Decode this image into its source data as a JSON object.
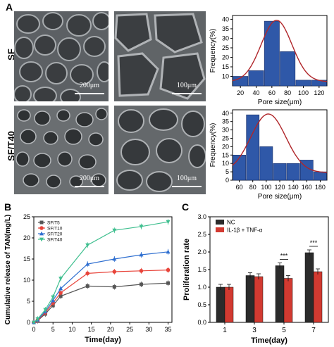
{
  "panel_labels": {
    "a": "A",
    "b": "B",
    "c": "C"
  },
  "sem": {
    "rows": [
      {
        "label": "SF",
        "scales": [
          "200μm",
          "100μm"
        ]
      },
      {
        "label": "SF/T40",
        "scales": [
          "200μm",
          "100μm"
        ]
      }
    ]
  },
  "chart_data": [
    {
      "type": "bar",
      "id": "hist-sf",
      "categories": [
        "20-40",
        "40-60",
        "60-80",
        "80-100",
        "100-120",
        "120-140"
      ],
      "values": [
        10,
        13,
        39,
        23,
        8,
        8
      ],
      "fit": "gaussian",
      "xlabel": "Pore size(μm)",
      "ylabel": "Frequency(%)",
      "xticks": [
        "20",
        "40",
        "60",
        "80",
        "100",
        "120"
      ],
      "yticks": [
        "10",
        "15",
        "20",
        "25",
        "30",
        "35",
        "40"
      ],
      "ylim": [
        5,
        42
      ],
      "bar_color": "#2f58a8",
      "fit_color": "#b0262a"
    },
    {
      "type": "bar",
      "id": "hist-sft40",
      "categories": [
        "60-80",
        "80-100",
        "100-120",
        "120-140",
        "140-160",
        "160-180",
        "180-200"
      ],
      "values": [
        15,
        39,
        20,
        10,
        10,
        12,
        5
      ],
      "fit": "gaussian",
      "xlabel": "Pore size(μm)",
      "ylabel": "Frequency(%)",
      "xticks": [
        "60",
        "80",
        "100",
        "120",
        "140",
        "160",
        "180"
      ],
      "yticks": [
        "0",
        "5",
        "10",
        "15",
        "20",
        "25",
        "30",
        "35",
        "40"
      ],
      "ylim": [
        0,
        42
      ],
      "bar_color": "#2f58a8",
      "fit_color": "#b0262a"
    },
    {
      "type": "line",
      "id": "release",
      "xlabel": "Time(day)",
      "ylabel": "Cumulative release of TAN(mg/L)",
      "xticks": [
        "0",
        "5",
        "10",
        "15",
        "20",
        "25",
        "30",
        "35"
      ],
      "yticks": [
        "0",
        "5",
        "10",
        "15",
        "20",
        "25"
      ],
      "xlim": [
        0,
        36
      ],
      "ylim": [
        0,
        25
      ],
      "x": [
        0,
        1,
        3,
        5,
        7,
        14,
        21,
        28,
        35
      ],
      "series": [
        {
          "name": "SF/T5",
          "color": "#555555",
          "marker": "square",
          "values": [
            0,
            0.4,
            2.0,
            4.0,
            6.2,
            8.6,
            8.4,
            9.0,
            9.3
          ]
        },
        {
          "name": "SF/T10",
          "color": "#e8443a",
          "marker": "circle",
          "values": [
            0,
            0.5,
            2.3,
            4.6,
            7.0,
            11.6,
            12.0,
            12.2,
            12.4
          ]
        },
        {
          "name": "SF/T20",
          "color": "#2f6fd0",
          "marker": "triangle",
          "values": [
            0,
            0.6,
            2.6,
            5.2,
            8.0,
            13.8,
            15.0,
            16.0,
            16.7
          ]
        },
        {
          "name": "SF/T40",
          "color": "#3fbf8f",
          "marker": "triangle-down",
          "values": [
            0,
            0.8,
            3.0,
            6.0,
            10.4,
            18.3,
            21.8,
            22.7,
            23.8
          ]
        }
      ]
    },
    {
      "type": "bar",
      "id": "proliferation",
      "categories": [
        "1",
        "3",
        "5",
        "7"
      ],
      "xlabel": "Time(day)",
      "ylabel": "Proliferation rate",
      "yticks": [
        "0.0",
        "0.5",
        "1.0",
        "1.5",
        "2.0",
        "2.5",
        "3.0"
      ],
      "ylim": [
        0,
        3.0
      ],
      "series": [
        {
          "name": "NC",
          "color": "#2b2b2b",
          "values": [
            1.0,
            1.33,
            1.61,
            1.98
          ]
        },
        {
          "name": "IL-1β + TNF-α",
          "color": "#d23a31",
          "values": [
            1.0,
            1.3,
            1.25,
            1.44
          ]
        }
      ],
      "annotations": [
        {
          "category": "5",
          "text": "***"
        },
        {
          "category": "7",
          "text": "***"
        }
      ]
    }
  ]
}
